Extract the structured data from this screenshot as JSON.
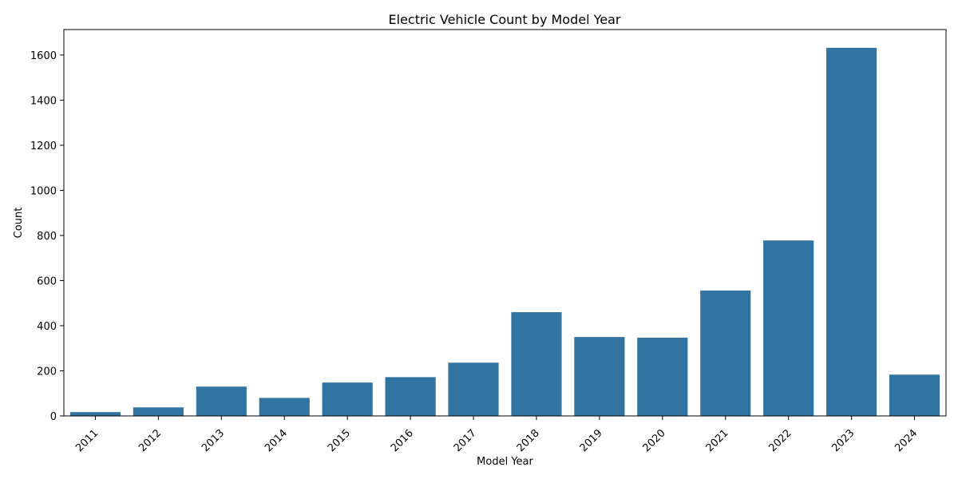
{
  "chart_data": {
    "type": "bar",
    "title": "Electric Vehicle Count by Model Year",
    "xlabel": "Model Year",
    "ylabel": "Count",
    "categories": [
      "2011",
      "2012",
      "2013",
      "2014",
      "2015",
      "2016",
      "2017",
      "2018",
      "2019",
      "2020",
      "2021",
      "2022",
      "2023",
      "2024"
    ],
    "values": [
      17,
      38,
      130,
      80,
      148,
      172,
      236,
      460,
      350,
      347,
      556,
      778,
      1632,
      183
    ],
    "ylim": [
      0,
      1713
    ],
    "yticks": [
      0,
      200,
      400,
      600,
      800,
      1000,
      1200,
      1400,
      1600
    ],
    "grid": false,
    "bar_color": "#3274a1",
    "xtick_rotation": 45
  }
}
